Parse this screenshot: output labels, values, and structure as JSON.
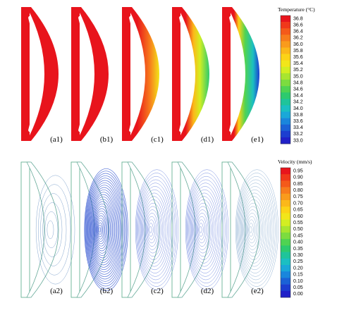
{
  "temperature_legend": {
    "title": "Temperature (°C)",
    "labels": [
      "36.8",
      "36.6",
      "36.4",
      "36.2",
      "36.0",
      "35.8",
      "35.6",
      "35.4",
      "35.2",
      "35.0",
      "34.8",
      "34.6",
      "34.4",
      "34.2",
      "34.0",
      "33.8",
      "33.6",
      "33.4",
      "33.2",
      "33.0"
    ],
    "colors": [
      "#e8141c",
      "#f0381a",
      "#f45a1a",
      "#f77c1c",
      "#f99b1c",
      "#fbb81a",
      "#fcd317",
      "#f2e61a",
      "#d3ee22",
      "#a8e530",
      "#7cdc3f",
      "#4fd352",
      "#2dca6e",
      "#1fc49a",
      "#1bbfc2",
      "#1aa8d8",
      "#1a86dc",
      "#1b62d6",
      "#1c3ed0",
      "#2020c8"
    ]
  },
  "velocity_legend": {
    "title": "Velocity (mm/s)",
    "labels": [
      "0.95",
      "0.90",
      "0.85",
      "0.80",
      "0.75",
      "0.70",
      "0.65",
      "0.60",
      "0.55",
      "0.50",
      "0.45",
      "0.40",
      "0.35",
      "0.30",
      "0.25",
      "0.20",
      "0.15",
      "0.10",
      "0.05",
      "0.00"
    ],
    "colors": [
      "#e8141c",
      "#f0381a",
      "#f45a1a",
      "#f77c1c",
      "#f99b1c",
      "#fbb81a",
      "#fcd317",
      "#f2e61a",
      "#d3ee22",
      "#a8e530",
      "#7cdc3f",
      "#4fd352",
      "#2dca6e",
      "#1fc49a",
      "#1bbfc2",
      "#1aa8d8",
      "#1a86dc",
      "#1b62d6",
      "#1c3ed0",
      "#2020c8"
    ]
  },
  "panels_top": [
    "(a1)",
    "(b1)",
    "(c1)",
    "(d1)",
    "(e1)"
  ],
  "panels_bottom": [
    "(a2)",
    "(b2)",
    "(c2)",
    "(d2)",
    "(e2)"
  ]
}
